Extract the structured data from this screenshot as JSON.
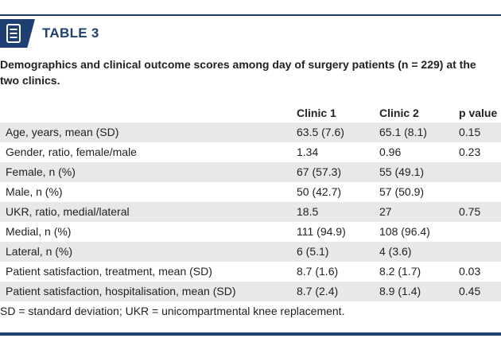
{
  "header": {
    "table_label": "TABLE 3",
    "caption": "Demographics and clinical outcome scores among day of surgery patients (n = 229) at the two clinics."
  },
  "table": {
    "columns": [
      "",
      "Clinic 1",
      "Clinic 2",
      "p value"
    ],
    "rows": [
      {
        "label": "Age, years, mean (SD)",
        "clinic1": "63.5 (7.6)",
        "clinic2": "65.1 (8.1)",
        "p": "0.15",
        "shaded": true
      },
      {
        "label": "Gender, ratio, female/male",
        "clinic1": "1.34",
        "clinic2": "0.96",
        "p": "0.23",
        "shaded": false
      },
      {
        "label": "Female, n (%)",
        "clinic1": "67 (57.3)",
        "clinic2": "55 (49.1)",
        "p": "",
        "shaded": true
      },
      {
        "label": "Male, n (%)",
        "clinic1": "50 (42.7)",
        "clinic2": "57 (50.9)",
        "p": "",
        "shaded": false
      },
      {
        "label": "UKR, ratio, medial/lateral",
        "clinic1": "18.5",
        "clinic2": "27",
        "p": "0.75",
        "shaded": true
      },
      {
        "label": "Medial, n (%)",
        "clinic1": "111 (94.9)",
        "clinic2": "108 (96.4)",
        "p": "",
        "shaded": false
      },
      {
        "label": "Lateral, n (%)",
        "clinic1": "6 (5.1)",
        "clinic2": "4 (3.6)",
        "p": "",
        "shaded": true
      },
      {
        "label": "Patient satisfaction, treatment, mean (SD)",
        "clinic1": "8.7 (1.6)",
        "clinic2": "8.2 (1.7)",
        "p": "0.03",
        "shaded": false
      },
      {
        "label": "Patient satisfaction, hospitalisation, mean (SD)",
        "clinic1": "8.7 (2.4)",
        "clinic2": "8.9 (1.4)",
        "p": "0.45",
        "shaded": true
      }
    ],
    "footnote": "SD = standard deviation; UKR = unicompartmental knee replacement."
  },
  "colors": {
    "accent": "#1f3f73",
    "row_shade": "#e8e8e8"
  },
  "icons": {
    "badge": "document-list-icon"
  }
}
